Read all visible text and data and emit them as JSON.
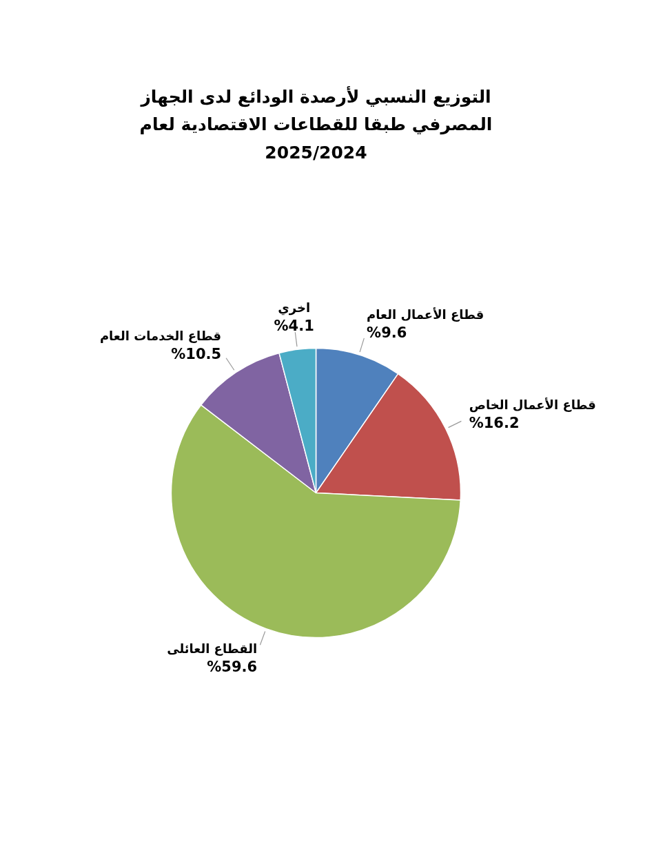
{
  "chart_data": {
    "type": "pie",
    "title": "التوزيع النسبي لأرصدة الودائع لدى الجهاز\nالمصرفي طبقا للقطاعات الاقتصادية لعام\n2025/2024",
    "categories": [
      "قطاع الأعمال العام",
      "قطاع الأعمال الخاص",
      "القطاع العائلى",
      "قطاع الخدمات العام",
      "اخري"
    ],
    "values": [
      9.6,
      16.2,
      59.6,
      10.5,
      4.1
    ],
    "value_labels": [
      "%9.6",
      "%16.2",
      "%59.6",
      "%10.5",
      "%4.1"
    ],
    "colors": [
      "#4f81bd",
      "#c0504d",
      "#9bbb59",
      "#8064a2",
      "#4bacc6"
    ]
  }
}
